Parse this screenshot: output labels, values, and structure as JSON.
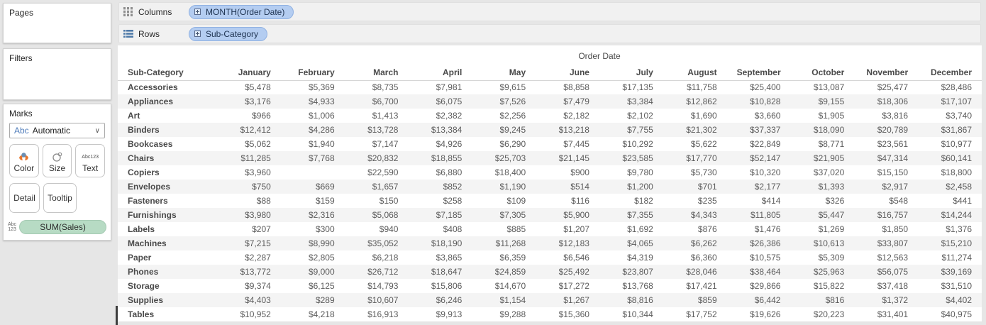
{
  "sidebar": {
    "pages_label": "Pages",
    "filters_label": "Filters",
    "marks": {
      "label": "Marks",
      "mark_type_prefix": "Abc",
      "mark_type_value": "Automatic",
      "color_button": "Color",
      "size_button": "Size",
      "text_button": "Text",
      "detail_button": "Detail",
      "tooltip_button": "Tooltip",
      "text_icon_line1": "Abc",
      "text_icon_line2": "123",
      "pill_icon_line1": "Abc",
      "pill_icon_line2": "123",
      "encoding_pill": "SUM(Sales)"
    }
  },
  "shelves": {
    "columns_label": "Columns",
    "columns_pill": "MONTH(Order Date)",
    "rows_label": "Rows",
    "rows_pill": "Sub-Category"
  },
  "chart_data": {
    "type": "table",
    "title": "Order Date",
    "row_header": "Sub-Category",
    "columns": [
      "January",
      "February",
      "March",
      "April",
      "May",
      "June",
      "July",
      "August",
      "September",
      "October",
      "November",
      "December"
    ],
    "rows": [
      {
        "label": "Accessories",
        "values": [
          "$5,478",
          "$5,369",
          "$8,735",
          "$7,981",
          "$9,615",
          "$8,858",
          "$17,135",
          "$11,758",
          "$25,400",
          "$13,087",
          "$25,477",
          "$28,486"
        ]
      },
      {
        "label": "Appliances",
        "values": [
          "$3,176",
          "$4,933",
          "$6,700",
          "$6,075",
          "$7,526",
          "$7,479",
          "$3,384",
          "$12,862",
          "$10,828",
          "$9,155",
          "$18,306",
          "$17,107"
        ]
      },
      {
        "label": "Art",
        "values": [
          "$966",
          "$1,006",
          "$1,413",
          "$2,382",
          "$2,256",
          "$2,182",
          "$2,102",
          "$1,690",
          "$3,660",
          "$1,905",
          "$3,816",
          "$3,740"
        ]
      },
      {
        "label": "Binders",
        "values": [
          "$12,412",
          "$4,286",
          "$13,728",
          "$13,384",
          "$9,245",
          "$13,218",
          "$7,755",
          "$21,302",
          "$37,337",
          "$18,090",
          "$20,789",
          "$31,867"
        ]
      },
      {
        "label": "Bookcases",
        "values": [
          "$5,062",
          "$1,940",
          "$7,147",
          "$4,926",
          "$6,290",
          "$7,445",
          "$10,292",
          "$5,622",
          "$22,849",
          "$8,771",
          "$23,561",
          "$10,977"
        ]
      },
      {
        "label": "Chairs",
        "values": [
          "$11,285",
          "$7,768",
          "$20,832",
          "$18,855",
          "$25,703",
          "$21,145",
          "$23,585",
          "$17,770",
          "$52,147",
          "$21,905",
          "$47,314",
          "$60,141"
        ]
      },
      {
        "label": "Copiers",
        "values": [
          "$3,960",
          "",
          "$22,590",
          "$6,880",
          "$18,400",
          "$900",
          "$9,780",
          "$5,730",
          "$10,320",
          "$37,020",
          "$15,150",
          "$18,800"
        ]
      },
      {
        "label": "Envelopes",
        "values": [
          "$750",
          "$669",
          "$1,657",
          "$852",
          "$1,190",
          "$514",
          "$1,200",
          "$701",
          "$2,177",
          "$1,393",
          "$2,917",
          "$2,458"
        ]
      },
      {
        "label": "Fasteners",
        "values": [
          "$88",
          "$159",
          "$150",
          "$258",
          "$109",
          "$116",
          "$182",
          "$235",
          "$414",
          "$326",
          "$548",
          "$441"
        ]
      },
      {
        "label": "Furnishings",
        "values": [
          "$3,980",
          "$2,316",
          "$5,068",
          "$7,185",
          "$7,305",
          "$5,900",
          "$7,355",
          "$4,343",
          "$11,805",
          "$5,447",
          "$16,757",
          "$14,244"
        ]
      },
      {
        "label": "Labels",
        "values": [
          "$207",
          "$300",
          "$940",
          "$408",
          "$885",
          "$1,207",
          "$1,692",
          "$876",
          "$1,476",
          "$1,269",
          "$1,850",
          "$1,376"
        ]
      },
      {
        "label": "Machines",
        "values": [
          "$7,215",
          "$8,990",
          "$35,052",
          "$18,190",
          "$11,268",
          "$12,183",
          "$4,065",
          "$6,262",
          "$26,386",
          "$10,613",
          "$33,807",
          "$15,210"
        ]
      },
      {
        "label": "Paper",
        "values": [
          "$2,287",
          "$2,805",
          "$6,218",
          "$3,865",
          "$6,359",
          "$6,546",
          "$4,319",
          "$6,360",
          "$10,575",
          "$5,309",
          "$12,563",
          "$11,274"
        ]
      },
      {
        "label": "Phones",
        "values": [
          "$13,772",
          "$9,000",
          "$26,712",
          "$18,647",
          "$24,859",
          "$25,492",
          "$23,807",
          "$28,046",
          "$38,464",
          "$25,963",
          "$56,075",
          "$39,169"
        ]
      },
      {
        "label": "Storage",
        "values": [
          "$9,374",
          "$6,125",
          "$14,793",
          "$15,806",
          "$14,670",
          "$17,272",
          "$13,768",
          "$17,421",
          "$29,866",
          "$15,822",
          "$37,418",
          "$31,510"
        ]
      },
      {
        "label": "Supplies",
        "values": [
          "$4,403",
          "$289",
          "$10,607",
          "$6,246",
          "$1,154",
          "$1,267",
          "$8,816",
          "$859",
          "$6,442",
          "$816",
          "$1,372",
          "$4,402"
        ]
      },
      {
        "label": "Tables",
        "values": [
          "$10,952",
          "$4,218",
          "$16,913",
          "$9,913",
          "$9,288",
          "$15,360",
          "$10,344",
          "$17,752",
          "$19,626",
          "$20,223",
          "$31,401",
          "$40,975"
        ]
      }
    ]
  },
  "colors": {
    "page_background": "#e6e6e6",
    "pill_blue": "#b4cdf1",
    "pill_green": "#b7dbc4",
    "accent_blue": "#4f7cba",
    "color_icon_orange": "#e8762c",
    "color_icon_blue": "#6b8fb3",
    "row_band": "#f4f4f4"
  }
}
